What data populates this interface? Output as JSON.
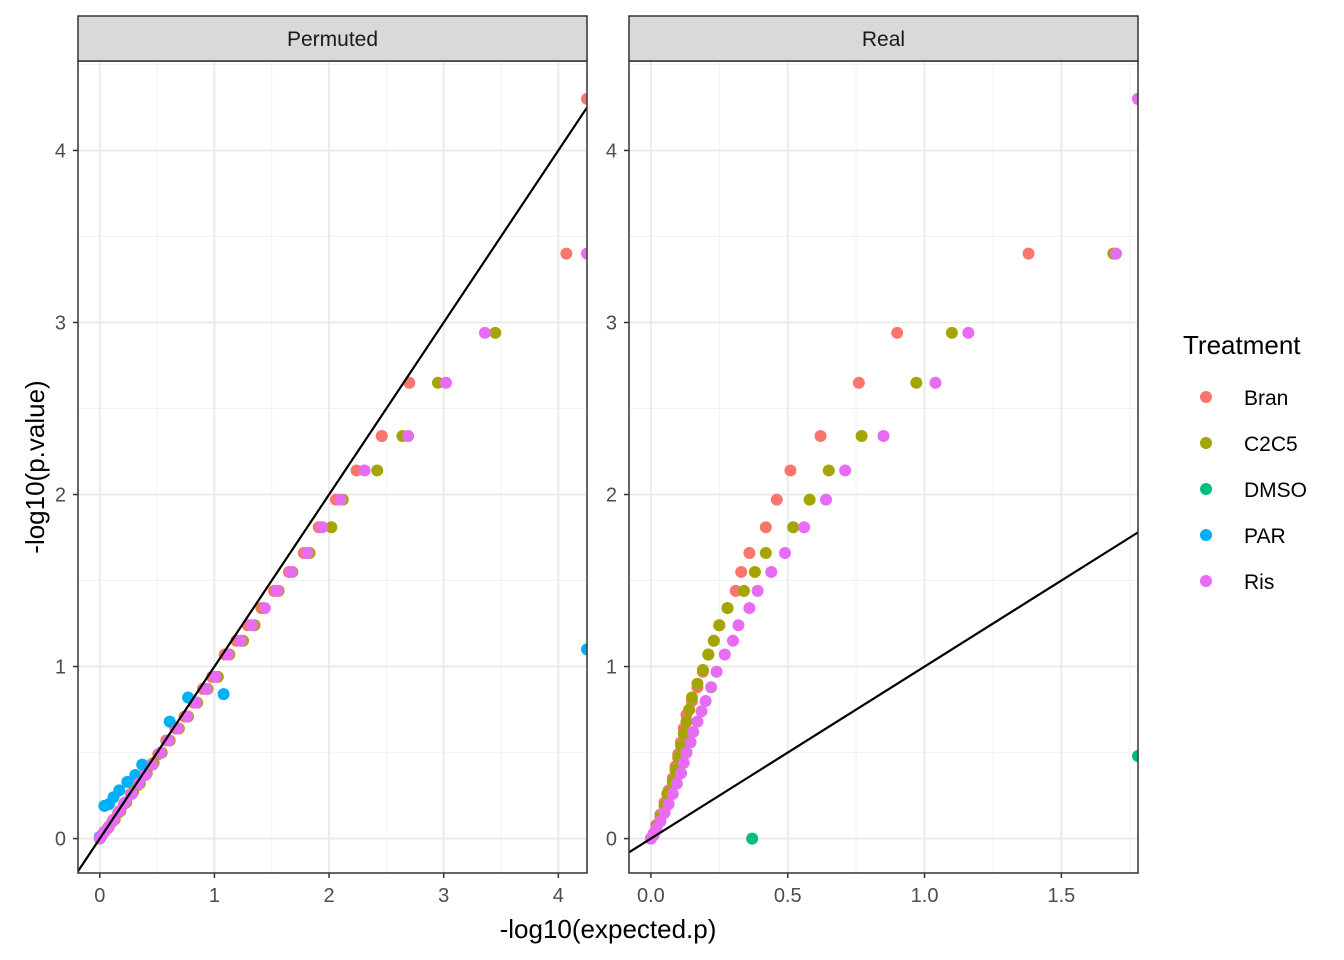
{
  "chart_data": {
    "type": "scatter",
    "title": "",
    "xlabel": "-log10(expected.p)",
    "ylabel": "-log10(p.value)",
    "legend": {
      "title": "Treatment",
      "position": "right",
      "entries": [
        {
          "name": "Bran",
          "color": "#F8766D"
        },
        {
          "name": "C2C5",
          "color": "#A3A500"
        },
        {
          "name": "DMSO",
          "color": "#00BF7D"
        },
        {
          "name": "PAR",
          "color": "#00B0F6"
        },
        {
          "name": "Ris",
          "color": "#E76BF3"
        }
      ]
    },
    "panels": [
      {
        "name": "Permuted",
        "xlim": [
          -0.19,
          4.25
        ],
        "ylim": [
          -0.2,
          4.52
        ],
        "x_ticks": [
          0,
          1,
          2,
          3,
          4
        ],
        "x_tick_labels": [
          "0",
          "1",
          "2",
          "3",
          "4"
        ],
        "y_ticks": [
          0,
          1,
          2,
          3,
          4
        ],
        "y_tick_labels": [
          "0",
          "1",
          "2",
          "3",
          "4"
        ],
        "reference_line": {
          "slope": 1,
          "intercept": 0
        },
        "series": [
          {
            "name": "Bran",
            "points": [
              [
                4.25,
                4.3
              ],
              [
                4.07,
                3.4
              ],
              [
                2.7,
                2.65
              ],
              [
                2.46,
                2.34
              ],
              [
                2.24,
                2.14
              ],
              [
                2.06,
                1.97
              ],
              [
                1.91,
                1.81
              ],
              [
                1.78,
                1.66
              ],
              [
                1.65,
                1.55
              ],
              [
                1.52,
                1.44
              ],
              [
                1.41,
                1.34
              ],
              [
                1.29,
                1.24
              ],
              [
                1.19,
                1.15
              ],
              [
                1.09,
                1.07
              ],
              [
                0.98,
                0.94
              ],
              [
                0.9,
                0.87
              ],
              [
                0.82,
                0.79
              ],
              [
                0.74,
                0.71
              ],
              [
                0.66,
                0.64
              ],
              [
                0.58,
                0.57
              ],
              [
                0.51,
                0.49
              ],
              [
                0.45,
                0.43
              ],
              [
                0.39,
                0.37
              ],
              [
                0.33,
                0.31
              ],
              [
                0.27,
                0.26
              ],
              [
                0.21,
                0.2
              ],
              [
                0.16,
                0.15
              ],
              [
                0.11,
                0.1
              ],
              [
                0.07,
                0.06
              ],
              [
                0.03,
                0.03
              ],
              [
                0.01,
                0.01
              ]
            ]
          },
          {
            "name": "C2C5",
            "points": [
              [
                3.45,
                2.94
              ],
              [
                2.95,
                2.65
              ],
              [
                2.64,
                2.34
              ],
              [
                2.42,
                2.14
              ],
              [
                2.12,
                1.97
              ],
              [
                2.02,
                1.81
              ],
              [
                1.83,
                1.66
              ],
              [
                1.68,
                1.55
              ],
              [
                1.56,
                1.44
              ],
              [
                1.43,
                1.34
              ],
              [
                1.35,
                1.24
              ],
              [
                1.25,
                1.15
              ],
              [
                1.13,
                1.07
              ],
              [
                1.03,
                0.94
              ],
              [
                0.94,
                0.87
              ],
              [
                0.85,
                0.79
              ],
              [
                0.77,
                0.71
              ],
              [
                0.69,
                0.64
              ],
              [
                0.61,
                0.57
              ],
              [
                0.54,
                0.5
              ],
              [
                0.47,
                0.44
              ],
              [
                0.41,
                0.38
              ],
              [
                0.35,
                0.32
              ],
              [
                0.29,
                0.27
              ],
              [
                0.23,
                0.21
              ],
              [
                0.18,
                0.16
              ],
              [
                0.13,
                0.11
              ],
              [
                0.08,
                0.07
              ],
              [
                0.04,
                0.04
              ],
              [
                0.01,
                0.01
              ]
            ]
          },
          {
            "name": "PAR",
            "points": [
              [
                4.25,
                1.1
              ],
              [
                1.08,
                0.84
              ],
              [
                0.77,
                0.82
              ],
              [
                0.61,
                0.68
              ],
              [
                0.37,
                0.43
              ],
              [
                0.31,
                0.37
              ],
              [
                0.24,
                0.33
              ],
              [
                0.17,
                0.28
              ],
              [
                0.12,
                0.24
              ],
              [
                0.04,
                0.19
              ],
              [
                0.08,
                0.2
              ],
              [
                0.0,
                0.01
              ]
            ]
          },
          {
            "name": "Ris",
            "points": [
              [
                4.25,
                3.4
              ],
              [
                3.36,
                2.94
              ],
              [
                3.02,
                2.65
              ],
              [
                2.69,
                2.34
              ],
              [
                2.31,
                2.14
              ],
              [
                2.1,
                1.97
              ],
              [
                1.94,
                1.81
              ],
              [
                1.81,
                1.66
              ],
              [
                1.67,
                1.55
              ],
              [
                1.55,
                1.44
              ],
              [
                1.44,
                1.34
              ],
              [
                1.33,
                1.24
              ],
              [
                1.23,
                1.15
              ],
              [
                1.12,
                1.07
              ],
              [
                1.01,
                0.94
              ],
              [
                0.93,
                0.87
              ],
              [
                0.84,
                0.79
              ],
              [
                0.76,
                0.71
              ],
              [
                0.68,
                0.64
              ],
              [
                0.6,
                0.57
              ],
              [
                0.53,
                0.5
              ],
              [
                0.46,
                0.43
              ],
              [
                0.4,
                0.37
              ],
              [
                0.34,
                0.32
              ],
              [
                0.28,
                0.26
              ],
              [
                0.22,
                0.21
              ],
              [
                0.17,
                0.16
              ],
              [
                0.12,
                0.11
              ],
              [
                0.08,
                0.07
              ],
              [
                0.04,
                0.04
              ],
              [
                0.01,
                0.01
              ],
              [
                0.0,
                0.0
              ]
            ]
          }
        ]
      },
      {
        "name": "Real",
        "xlim": [
          -0.08,
          1.78
        ],
        "ylim": [
          -0.2,
          4.52
        ],
        "x_ticks": [
          0.0,
          0.5,
          1.0,
          1.5
        ],
        "x_tick_labels": [
          "0.0",
          "0.5",
          "1.0",
          "1.5"
        ],
        "y_ticks": [
          0,
          1,
          2,
          3,
          4
        ],
        "y_tick_labels": [
          "0",
          "1",
          "2",
          "3",
          "4"
        ],
        "reference_line": {
          "slope": 1,
          "intercept": 0
        },
        "series": [
          {
            "name": "Bran",
            "points": [
              [
                1.78,
                4.3
              ],
              [
                1.38,
                3.4
              ],
              [
                0.9,
                2.94
              ],
              [
                0.76,
                2.65
              ],
              [
                0.62,
                2.34
              ],
              [
                0.51,
                2.14
              ],
              [
                0.46,
                1.97
              ],
              [
                0.42,
                1.81
              ],
              [
                0.36,
                1.66
              ],
              [
                0.33,
                1.55
              ],
              [
                0.31,
                1.44
              ],
              [
                0.28,
                1.34
              ],
              [
                0.25,
                1.24
              ],
              [
                0.23,
                1.15
              ],
              [
                0.21,
                1.07
              ],
              [
                0.19,
                0.97
              ],
              [
                0.17,
                0.88
              ],
              [
                0.15,
                0.8
              ],
              [
                0.13,
                0.72
              ],
              [
                0.12,
                0.64
              ],
              [
                0.11,
                0.56
              ],
              [
                0.1,
                0.49
              ],
              [
                0.09,
                0.42
              ],
              [
                0.08,
                0.35
              ],
              [
                0.065,
                0.28
              ],
              [
                0.05,
                0.21
              ],
              [
                0.035,
                0.14
              ],
              [
                0.02,
                0.08
              ],
              [
                0.01,
                0.03
              ],
              [
                0.0,
                0.0
              ]
            ]
          },
          {
            "name": "C2C5",
            "points": [
              [
                1.69,
                3.4
              ],
              [
                1.1,
                2.94
              ],
              [
                0.97,
                2.65
              ],
              [
                0.77,
                2.34
              ],
              [
                0.65,
                2.14
              ],
              [
                0.58,
                1.97
              ],
              [
                0.52,
                1.81
              ],
              [
                0.42,
                1.66
              ],
              [
                0.38,
                1.55
              ],
              [
                0.34,
                1.44
              ],
              [
                0.28,
                1.34
              ],
              [
                0.25,
                1.24
              ],
              [
                0.23,
                1.15
              ],
              [
                0.21,
                1.07
              ],
              [
                0.19,
                0.98
              ],
              [
                0.17,
                0.9
              ],
              [
                0.15,
                0.82
              ],
              [
                0.14,
                0.75
              ],
              [
                0.13,
                0.68
              ],
              [
                0.12,
                0.61
              ],
              [
                0.11,
                0.54
              ],
              [
                0.1,
                0.47
              ],
              [
                0.09,
                0.4
              ],
              [
                0.08,
                0.33
              ],
              [
                0.06,
                0.26
              ],
              [
                0.05,
                0.19
              ],
              [
                0.035,
                0.13
              ],
              [
                0.02,
                0.07
              ],
              [
                0.01,
                0.02
              ]
            ]
          },
          {
            "name": "DMSO",
            "points": [
              [
                0.37,
                0.0
              ],
              [
                1.78,
                0.48
              ]
            ]
          },
          {
            "name": "Ris",
            "points": [
              [
                1.78,
                4.3
              ],
              [
                1.7,
                3.4
              ],
              [
                1.16,
                2.94
              ],
              [
                1.04,
                2.65
              ],
              [
                0.85,
                2.34
              ],
              [
                0.71,
                2.14
              ],
              [
                0.64,
                1.97
              ],
              [
                0.56,
                1.81
              ],
              [
                0.49,
                1.66
              ],
              [
                0.44,
                1.55
              ],
              [
                0.39,
                1.44
              ],
              [
                0.36,
                1.34
              ],
              [
                0.32,
                1.24
              ],
              [
                0.3,
                1.15
              ],
              [
                0.27,
                1.07
              ],
              [
                0.24,
                0.97
              ],
              [
                0.22,
                0.88
              ],
              [
                0.2,
                0.8
              ],
              [
                0.185,
                0.74
              ],
              [
                0.17,
                0.68
              ],
              [
                0.155,
                0.62
              ],
              [
                0.145,
                0.56
              ],
              [
                0.13,
                0.5
              ],
              [
                0.12,
                0.44
              ],
              [
                0.11,
                0.38
              ],
              [
                0.095,
                0.32
              ],
              [
                0.08,
                0.26
              ],
              [
                0.065,
                0.2
              ],
              [
                0.05,
                0.15
              ],
              [
                0.035,
                0.1
              ],
              [
                0.02,
                0.06
              ],
              [
                0.01,
                0.02
              ],
              [
                0.0,
                0.0
              ]
            ]
          }
        ]
      }
    ]
  }
}
